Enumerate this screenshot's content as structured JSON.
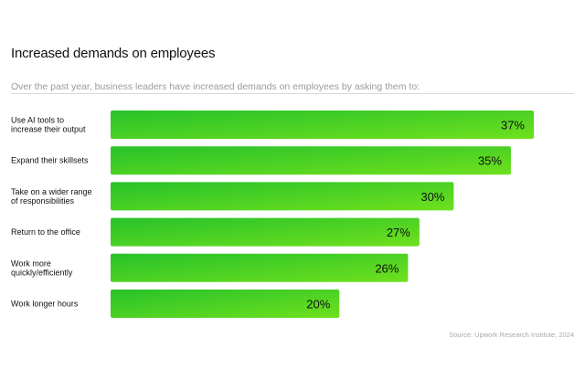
{
  "chart_data": {
    "type": "bar",
    "orientation": "horizontal",
    "title": "Increased demands on employees",
    "subtitle": "Over the past year, business leaders have increased demands on employees by asking them to:",
    "categories": [
      "Use AI tools to\nincrease their output",
      "Expand their skillsets",
      "Take on a wider range\nof responsibilities",
      "Return to the office",
      "Work more\nquickly/efficiently",
      "Work longer hours"
    ],
    "values": [
      37,
      35,
      30,
      27,
      26,
      20
    ],
    "value_labels": [
      "37%",
      "35%",
      "30%",
      "27%",
      "26%",
      "20%"
    ],
    "unit": "%",
    "xlim": [
      0,
      37
    ],
    "source": "Source: Upwork Research Institute, 2024"
  },
  "colors": {
    "bar_dark": "#27c22a",
    "bar_light": "#6fe01e",
    "text": "#111111",
    "muted": "#9a9a9a"
  }
}
